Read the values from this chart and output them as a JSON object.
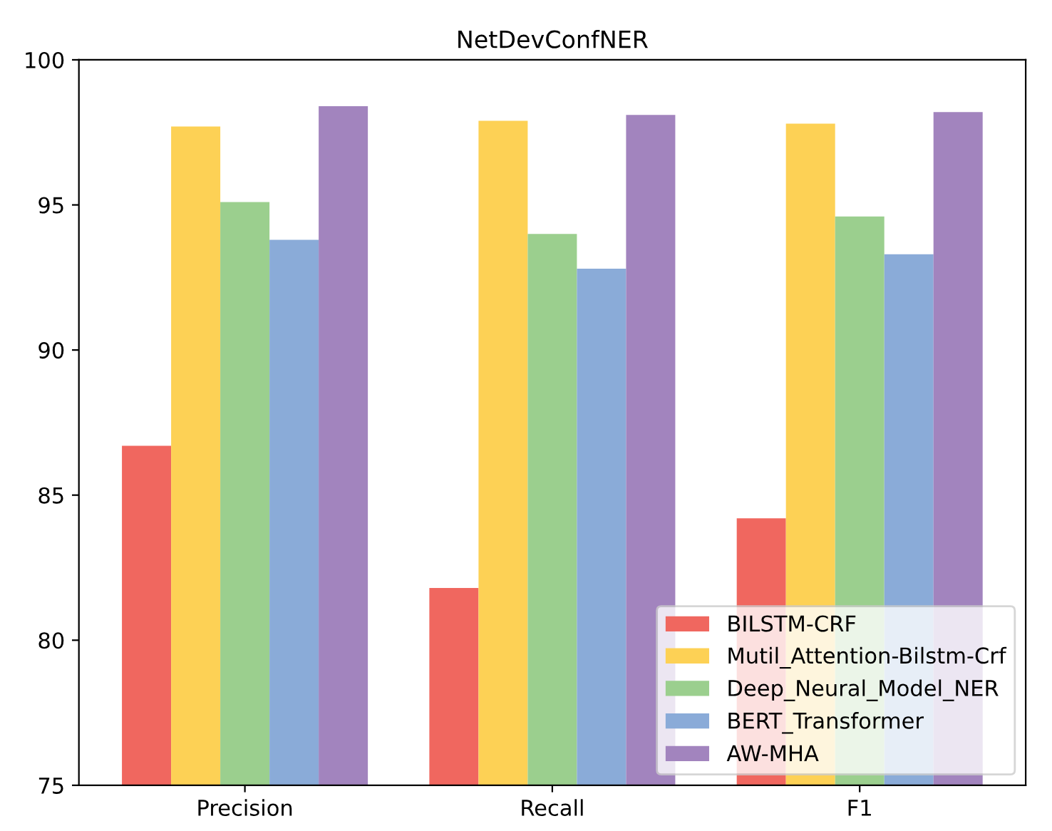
{
  "chart_data": {
    "type": "bar",
    "title": "NetDevConfNER",
    "categories": [
      "Precision",
      "Recall",
      "F1"
    ],
    "series": [
      {
        "name": "BILSTM-CRF",
        "color": "#f0675f",
        "values": [
          86.7,
          81.8,
          84.2
        ]
      },
      {
        "name": "Mutil_Attention-Bilstm-Crf",
        "color": "#fdd155",
        "values": [
          97.7,
          97.9,
          97.8
        ]
      },
      {
        "name": "Deep_Neural_Model_NER",
        "color": "#9bcf8e",
        "values": [
          95.1,
          94.0,
          94.6
        ]
      },
      {
        "name": "BERT_Transformer",
        "color": "#8aabd8",
        "values": [
          93.8,
          92.8,
          93.3
        ]
      },
      {
        "name": "AW-MHA",
        "color": "#a284be",
        "values": [
          98.4,
          98.1,
          98.2
        ]
      }
    ],
    "ylim": [
      75,
      100
    ],
    "yticks": [
      75,
      80,
      85,
      90,
      95,
      100
    ],
    "grid": false,
    "legend": "lower right"
  }
}
